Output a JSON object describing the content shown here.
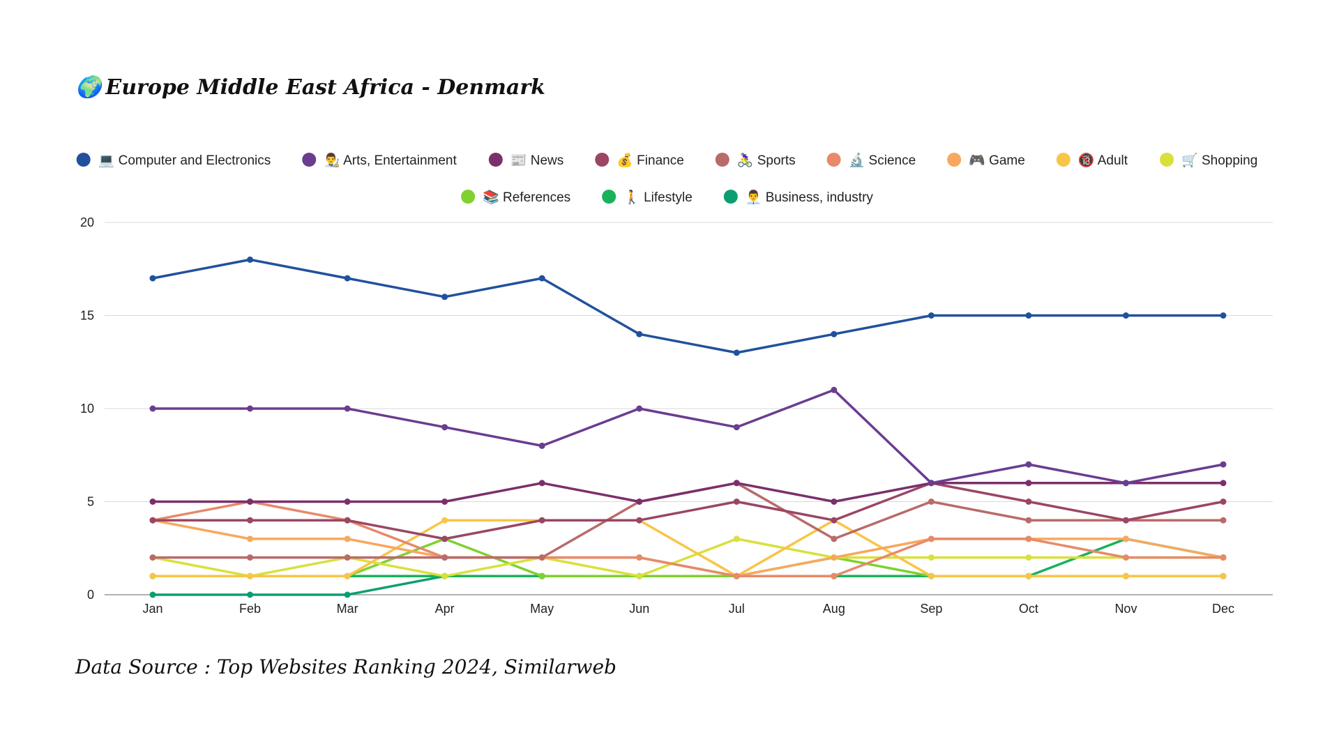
{
  "header": {
    "globe_icon": "globe-europe-africa-icon",
    "title": "Europe Middle East Africa - Denmark"
  },
  "footer": {
    "source": "Data Source : Top Websites Ranking 2024, Similarweb"
  },
  "chart_data": {
    "type": "line",
    "title": "Europe Middle East Africa - Denmark",
    "xlabel": "",
    "ylabel": "",
    "ylim": [
      0,
      20
    ],
    "yticks": [
      0,
      5,
      10,
      15,
      20
    ],
    "grid": true,
    "legend_position": "top",
    "categories": [
      "Jan",
      "Feb",
      "Mar",
      "Apr",
      "May",
      "Jun",
      "Jul",
      "Aug",
      "Sep",
      "Oct",
      "Nov",
      "Dec"
    ],
    "series": [
      {
        "name": "Computer and Electronics",
        "icon": "💻",
        "color": "#21519c",
        "values": [
          17,
          18,
          17,
          16,
          17,
          14,
          13,
          14,
          15,
          15,
          15,
          15
        ]
      },
      {
        "name": "Arts, Entertainment",
        "icon": "👨‍🎨",
        "color": "#6a3d8f",
        "values": [
          10,
          10,
          10,
          9,
          8,
          10,
          9,
          11,
          6,
          7,
          6,
          7
        ]
      },
      {
        "name": "News",
        "icon": "📰",
        "color": "#7b2f6b",
        "values": [
          5,
          5,
          5,
          5,
          6,
          5,
          6,
          5,
          6,
          6,
          6,
          6
        ]
      },
      {
        "name": "Finance",
        "icon": "💰",
        "color": "#9a4664",
        "values": [
          4,
          4,
          4,
          3,
          4,
          4,
          5,
          4,
          6,
          5,
          4,
          5
        ]
      },
      {
        "name": "Sports",
        "icon": "🚴‍♀️",
        "color": "#b96a6a",
        "values": [
          2,
          2,
          2,
          2,
          2,
          5,
          6,
          3,
          5,
          4,
          4,
          4
        ]
      },
      {
        "name": "Science",
        "icon": "🔬",
        "color": "#e68a6a",
        "values": [
          4,
          5,
          4,
          2,
          2,
          2,
          1,
          1,
          3,
          3,
          2,
          2
        ]
      },
      {
        "name": "Game",
        "icon": "🎮",
        "color": "#f7a85e",
        "values": [
          4,
          3,
          3,
          2,
          2,
          2,
          1,
          2,
          3,
          3,
          3,
          2
        ]
      },
      {
        "name": "Adult",
        "icon": "🔞",
        "color": "#f8c549",
        "values": [
          1,
          1,
          1,
          4,
          4,
          4,
          1,
          4,
          1,
          1,
          1,
          1
        ]
      },
      {
        "name": "Shopping",
        "icon": "🛒",
        "color": "#d9e03c",
        "values": [
          2,
          1,
          2,
          1,
          2,
          1,
          3,
          2,
          2,
          2,
          2,
          2
        ]
      },
      {
        "name": "References",
        "icon": "📚",
        "color": "#7ed12f",
        "values": [
          1,
          1,
          1,
          3,
          1,
          1,
          1,
          2,
          1,
          1,
          1,
          1
        ]
      },
      {
        "name": "Lifestyle",
        "icon": "🚶",
        "color": "#18b25a",
        "values": [
          1,
          1,
          1,
          1,
          1,
          1,
          1,
          1,
          1,
          1,
          3,
          2
        ]
      },
      {
        "name": "Business, industry",
        "icon": "👨‍💼",
        "color": "#0c9e73",
        "values": [
          0,
          0,
          0,
          1,
          1,
          1,
          1,
          1,
          1,
          1,
          1,
          1
        ]
      }
    ]
  }
}
